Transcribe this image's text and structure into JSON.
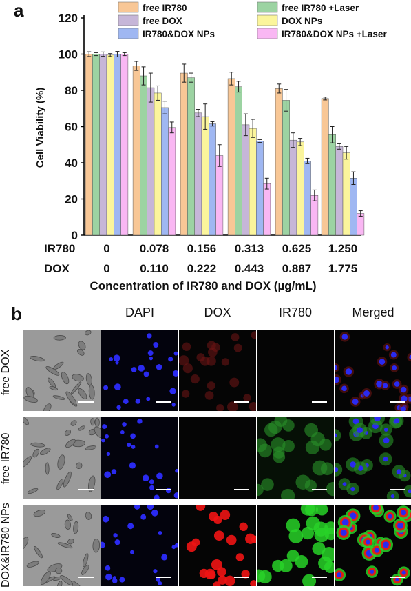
{
  "panel_a_label": "a",
  "panel_b_label": "b",
  "chart_data": {
    "type": "bar",
    "ylabel": "Cell Viability (%)",
    "xlabel": "Concentration of IR780 and DOX (µg/mL)",
    "ylim": [
      0,
      120
    ],
    "yticks": [
      0,
      20,
      40,
      60,
      80,
      100,
      120
    ],
    "row_labels": [
      "IR780",
      "DOX"
    ],
    "categories_ir780": [
      "0",
      "0.078",
      "0.156",
      "0.313",
      "0.625",
      "1.250"
    ],
    "categories_dox": [
      "0",
      "0.110",
      "0.222",
      "0.443",
      "0.887",
      "1.775"
    ],
    "legend_position": "top",
    "series": [
      {
        "name": "free IR780",
        "color": "#f8c796",
        "values": [
          100,
          93.5,
          89.5,
          86.5,
          81,
          75.5
        ],
        "errors": [
          1.3,
          2.5,
          5,
          3.5,
          2.5,
          0.8
        ]
      },
      {
        "name": "free IR780 +Laser",
        "color": "#9cd3a2",
        "values": [
          100,
          88,
          87,
          82,
          74.5,
          55.5
        ],
        "errors": [
          0.8,
          5,
          2.5,
          3,
          6,
          4.5
        ]
      },
      {
        "name": "free DOX",
        "color": "#c6b6d8",
        "values": [
          100,
          81.5,
          67.5,
          61,
          52.5,
          49
        ],
        "errors": [
          1.2,
          8,
          2,
          6,
          4,
          1.5
        ]
      },
      {
        "name": "DOX NPs",
        "color": "#fbf59c",
        "values": [
          99.5,
          78.5,
          65.5,
          59,
          51.5,
          45.5
        ],
        "errors": [
          0.8,
          4,
          7,
          5,
          2,
          3.5
        ]
      },
      {
        "name": "IR780&DOX NPs",
        "color": "#9fb7f2",
        "values": [
          100,
          70.5,
          61.5,
          52,
          41,
          31.5
        ],
        "errors": [
          1.5,
          3.5,
          1.2,
          0.8,
          1.5,
          3.5
        ]
      },
      {
        "name": "IR780&DOX NPs +Laser",
        "color": "#f9b7f3",
        "values": [
          100,
          59.5,
          44,
          28.5,
          22,
          12
        ],
        "errors": [
          0.8,
          3,
          6,
          3,
          3,
          1.5
        ]
      }
    ]
  },
  "panel_b": {
    "columns": [
      "",
      "DAPI",
      "DOX",
      "IR780",
      "Merged"
    ],
    "rows": [
      "free DOX",
      "free IR780",
      "DOX&IR780 NPs"
    ]
  }
}
